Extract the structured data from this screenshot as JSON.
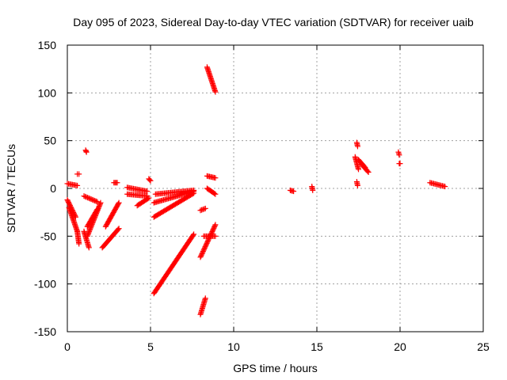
{
  "chart_data": {
    "type": "scatter",
    "title": "Day 095 of 2023, Sidereal Day-to-day VTEC variation (SDTVAR) for receiver uaib",
    "xlabel": "GPS time / hours",
    "ylabel": "SDTVAR / TECUs",
    "xlim": [
      0,
      25
    ],
    "ylim": [
      -150,
      150
    ],
    "xticks": [
      0,
      5,
      10,
      15,
      20,
      25
    ],
    "yticks": [
      -150,
      -100,
      -50,
      0,
      50,
      100,
      150
    ],
    "grid": true,
    "marker": "plus",
    "color": "#ff0000",
    "series": [
      {
        "name": "SDTVAR",
        "segments": [
          {
            "x": [
              0.0,
              0.6
            ],
            "y": [
              5,
              3
            ]
          },
          {
            "x": [
              0.0,
              0.5
            ],
            "y": [
              -12,
              -30
            ]
          },
          {
            "x": [
              0.1,
              0.6
            ],
            "y": [
              -20,
              -45
            ]
          },
          {
            "x": [
              0.6,
              0.7
            ],
            "y": [
              15,
              15
            ]
          },
          {
            "x": [
              0.6,
              0.7
            ],
            "y": [
              -45,
              -58
            ]
          },
          {
            "x": [
              1.1,
              1.15
            ],
            "y": [
              40,
              38
            ]
          },
          {
            "x": [
              1.0,
              1.3
            ],
            "y": [
              -45,
              -62
            ]
          },
          {
            "x": [
              1.0,
              1.8
            ],
            "y": [
              -8,
              -14
            ]
          },
          {
            "x": [
              1.2,
              1.8
            ],
            "y": [
              -40,
              -22
            ]
          },
          {
            "x": [
              1.2,
              2.0
            ],
            "y": [
              -50,
              -15
            ]
          },
          {
            "x": [
              2.1,
              3.1
            ],
            "y": [
              -62,
              -42
            ]
          },
          {
            "x": [
              2.3,
              3.1
            ],
            "y": [
              -40,
              -15
            ]
          },
          {
            "x": [
              2.8,
              3.0
            ],
            "y": [
              6,
              6
            ]
          },
          {
            "x": [
              3.6,
              4.8
            ],
            "y": [
              1,
              -3
            ]
          },
          {
            "x": [
              3.6,
              4.8
            ],
            "y": [
              -6,
              -8
            ]
          },
          {
            "x": [
              4.2,
              4.9
            ],
            "y": [
              -18,
              -10
            ]
          },
          {
            "x": [
              4.9,
              5.0
            ],
            "y": [
              10,
              8
            ]
          },
          {
            "x": [
              5.2,
              7.6
            ],
            "y": [
              -110,
              -48
            ]
          },
          {
            "x": [
              5.2,
              7.6
            ],
            "y": [
              -30,
              -5
            ]
          },
          {
            "x": [
              5.2,
              7.6
            ],
            "y": [
              -15,
              -3
            ]
          },
          {
            "x": [
              5.3,
              7.6
            ],
            "y": [
              -6,
              -2
            ]
          },
          {
            "x": [
              8.0,
              8.3
            ],
            "y": [
              -23,
              -21
            ]
          },
          {
            "x": [
              8.0,
              8.9
            ],
            "y": [
              -72,
              -38
            ]
          },
          {
            "x": [
              8.2,
              8.9
            ],
            "y": [
              -50,
              -50
            ]
          },
          {
            "x": [
              8.0,
              8.3
            ],
            "y": [
              -132,
              -115
            ]
          },
          {
            "x": [
              8.4,
              8.9
            ],
            "y": [
              127,
              101
            ]
          },
          {
            "x": [
              8.4,
              8.9
            ],
            "y": [
              13,
              11
            ]
          },
          {
            "x": [
              8.4,
              8.9
            ],
            "y": [
              0,
              -6
            ]
          },
          {
            "x": [
              13.4,
              13.6
            ],
            "y": [
              -2,
              -3
            ]
          },
          {
            "x": [
              14.7,
              14.75
            ],
            "y": [
              2,
              -2
            ]
          },
          {
            "x": [
              17.4,
              17.45
            ],
            "y": [
              48,
              44
            ]
          },
          {
            "x": [
              17.3,
              17.5
            ],
            "y": [
              33,
              20
            ]
          },
          {
            "x": [
              17.5,
              17.9
            ],
            "y": [
              30,
              22
            ]
          },
          {
            "x": [
              17.7,
              18.1
            ],
            "y": [
              25,
              17
            ]
          },
          {
            "x": [
              17.4,
              17.45
            ],
            "y": [
              7,
              3
            ]
          },
          {
            "x": [
              19.9,
              19.95
            ],
            "y": [
              38,
              35
            ]
          },
          {
            "x": [
              19.95,
              20.0
            ],
            "y": [
              26,
              26
            ]
          },
          {
            "x": [
              21.8,
              22.7
            ],
            "y": [
              6,
              2
            ]
          }
        ]
      }
    ]
  }
}
